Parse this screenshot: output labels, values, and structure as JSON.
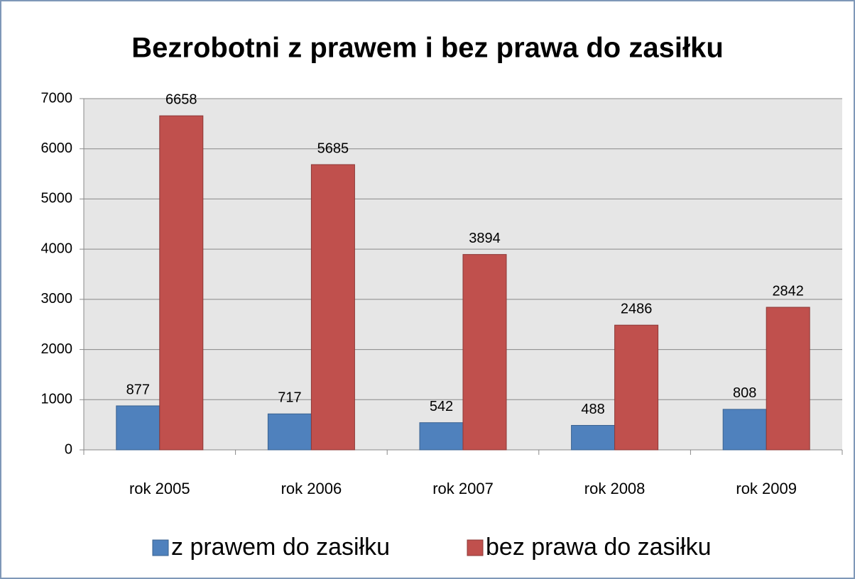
{
  "chart_data": {
    "type": "bar",
    "title": "Bezrobotni z prawem i bez prawa do zasiłku",
    "categories": [
      "rok 2005",
      "rok 2006",
      "rok 2007",
      "rok 2008",
      "rok 2009"
    ],
    "series": [
      {
        "name": "z prawem do zasiłku",
        "color": "#4f81bd",
        "values": [
          877,
          717,
          542,
          488,
          808
        ]
      },
      {
        "name": "bez prawa do zasiłku",
        "color": "#c0504d",
        "values": [
          6658,
          5685,
          3894,
          2486,
          2842
        ]
      }
    ],
    "ylim": [
      0,
      7000
    ],
    "yticks": [
      0,
      1000,
      2000,
      3000,
      4000,
      5000,
      6000,
      7000
    ],
    "grid": true,
    "legend": "bottom"
  }
}
